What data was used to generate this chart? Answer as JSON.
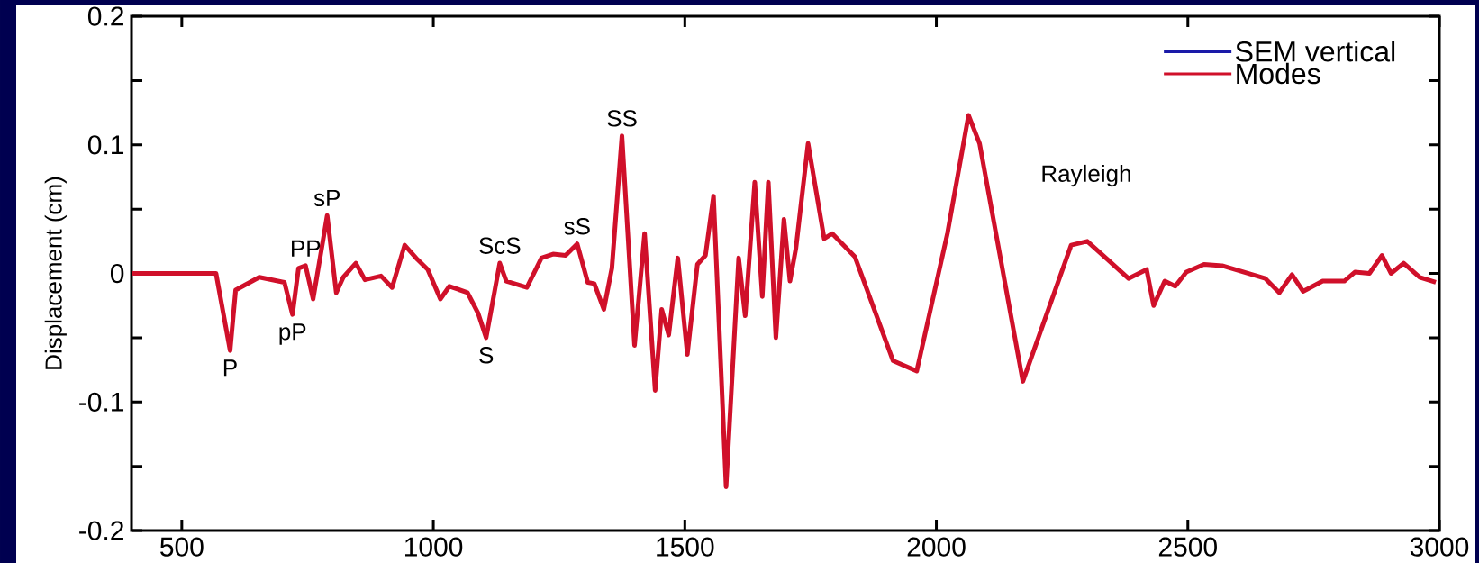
{
  "chart_data": {
    "type": "line",
    "ylabel": "Displacement (cm)",
    "xlim": [
      400,
      3000
    ],
    "ylim": [
      -0.2,
      0.2
    ],
    "xticks": [
      500,
      1000,
      1500,
      2000,
      2500,
      3000
    ],
    "yticks": [
      -0.2,
      {
        "value": -0.15,
        "label": null
      },
      -0.1,
      {
        "value": -0.05,
        "label": null
      },
      0,
      {
        "value": 0.05,
        "label": null
      },
      0.1,
      {
        "value": 0.15,
        "label": null
      },
      0.2
    ],
    "legend": "top right",
    "marker": "none",
    "line_style": "solid",
    "x": [
      400,
      568,
      596,
      607,
      654,
      704,
      720,
      732,
      746,
      761,
      789,
      807,
      821,
      846,
      864,
      896,
      918,
      943,
      968,
      989,
      1014,
      1032,
      1068,
      1089,
      1105,
      1132,
      1145,
      1186,
      1215,
      1238,
      1263,
      1286,
      1307,
      1320,
      1339,
      1355,
      1375,
      1400,
      1420,
      1441,
      1454,
      1468,
      1486,
      1505,
      1525,
      1541,
      1557,
      1582,
      1607,
      1620,
      1639,
      1654,
      1666,
      1681,
      1697,
      1709,
      1721,
      1745,
      1777,
      1793,
      1838,
      1914,
      1961,
      2022,
      2064,
      2086,
      2172,
      2268,
      2300,
      2340,
      2382,
      2418,
      2432,
      2454,
      2475,
      2497,
      2532,
      2568,
      2654,
      2682,
      2707,
      2729,
      2768,
      2811,
      2832,
      2861,
      2886,
      2904,
      2929,
      2961,
      2993
    ],
    "series": [
      {
        "name": "SEM vertical",
        "color": "#1a1aa8",
        "values": [
          null,
          null,
          null,
          null,
          null,
          null,
          null,
          null,
          null,
          null,
          null,
          null,
          null,
          null,
          null,
          null,
          null,
          null,
          null,
          null,
          null,
          null,
          null,
          null,
          null,
          null,
          null,
          null,
          null,
          null,
          null,
          null,
          null,
          null,
          null,
          null,
          null,
          null,
          null,
          null,
          null,
          null,
          null,
          null,
          null,
          null,
          null,
          null,
          null,
          null,
          null,
          null,
          null,
          null,
          null,
          null,
          null,
          null,
          null,
          null,
          null,
          null,
          null,
          null,
          null,
          null,
          null,
          null,
          null,
          null,
          null,
          null,
          null,
          null,
          null,
          null,
          null,
          null,
          null,
          null,
          null,
          null,
          null,
          null,
          null,
          null,
          null,
          null,
          null,
          null,
          null
        ]
      },
      {
        "name": "Modes",
        "color": "#d0102a",
        "values": [
          0,
          0,
          -0.06,
          -0.013,
          -0.003,
          -0.007,
          -0.032,
          0.004,
          0.006,
          -0.02,
          0.045,
          -0.015,
          -0.003,
          0.008,
          -0.005,
          -0.002,
          -0.011,
          0.022,
          0.011,
          0.003,
          -0.02,
          -0.01,
          -0.015,
          -0.031,
          -0.05,
          0.008,
          -0.006,
          -0.011,
          0.012,
          0.015,
          0.014,
          0.023,
          -0.007,
          -0.008,
          -0.028,
          0.004,
          0.107,
          -0.056,
          0.031,
          -0.091,
          -0.028,
          -0.048,
          0.012,
          -0.063,
          0.007,
          0.014,
          0.06,
          -0.166,
          0.012,
          -0.033,
          0.071,
          -0.018,
          0.071,
          -0.05,
          0.042,
          -0.006,
          0.02,
          0.101,
          0.027,
          0.031,
          0.013,
          -0.068,
          -0.076,
          0.031,
          0.123,
          0.101,
          -0.084,
          0.022,
          0.025,
          0.011,
          -0.004,
          0.003,
          -0.025,
          -0.006,
          -0.01,
          0.001,
          0.007,
          0.006,
          -0.004,
          -0.015,
          -0.001,
          -0.014,
          -0.006,
          -0.006,
          0.001,
          0,
          0.014,
          0,
          0.008,
          -0.003,
          -0.007
        ]
      }
    ],
    "annotations": [
      {
        "text": "P",
        "x": 596,
        "y": -0.06
      },
      {
        "text": "pP",
        "x": 720,
        "y": -0.032
      },
      {
        "text": "PP",
        "x": 746,
        "y": 0.006
      },
      {
        "text": "sP",
        "x": 789,
        "y": 0.045
      },
      {
        "text": "S",
        "x": 1105,
        "y": -0.05
      },
      {
        "text": "ScS",
        "x": 1132,
        "y": 0.008
      },
      {
        "text": "sS",
        "x": 1286,
        "y": 0.023
      },
      {
        "text": "SS",
        "x": 1375,
        "y": 0.107
      },
      "Rayleigh"
    ]
  }
}
